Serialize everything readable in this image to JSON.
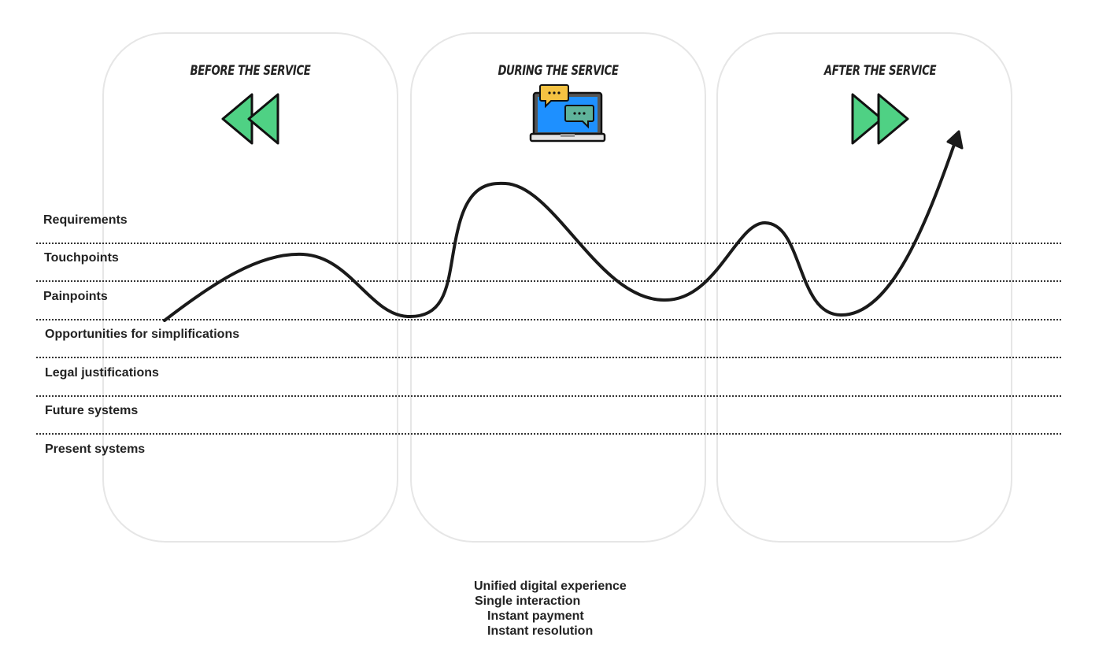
{
  "phases": [
    {
      "title": "Before the service",
      "icon": "rewind-icon"
    },
    {
      "title": "During the service",
      "icon": "laptop-chat-icon"
    },
    {
      "title": "After the service",
      "icon": "fast-forward-icon"
    }
  ],
  "rows": [
    "Requirements",
    "Touchpoints",
    "Painpoints",
    "Opportunities for simplifications",
    "Legal justifications",
    "Future systems",
    "Present systems"
  ],
  "notes": [
    "Unified digital experience",
    "Single interaction",
    "Instant payment",
    "Instant resolution"
  ],
  "colors": {
    "column_border": "#e6e6e6",
    "arrow_green": "#4fd184",
    "laptop_screen": "#1e90ff",
    "bubble_yellow": "#f5c242",
    "bubble_teal": "#5fb39b",
    "curve": "#1a1a1a"
  }
}
